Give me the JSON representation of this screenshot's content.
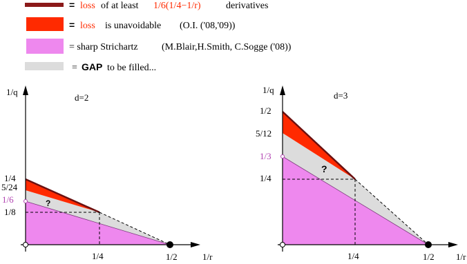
{
  "legend": {
    "row1": {
      "prefix": "=",
      "word": "loss",
      "mid": "of at least",
      "expr": "1/6(1/4−1/r)",
      "suffix": "derivatives"
    },
    "row2": {
      "prefix": "=",
      "word": "loss",
      "text": "is unavoidable",
      "cite": "(O.I. ('08,'09))"
    },
    "row3": {
      "text": "= sharp Strichartz",
      "cite": "(M.Blair,H.Smith, C.Sogge ('08))"
    },
    "row4": {
      "prefix": "=",
      "bold": "GAP",
      "rest": "to be filled..."
    }
  },
  "left_plot": {
    "title": "d=2",
    "y_axis_label": "1/q",
    "x_axis_label": "1/r",
    "y_ticks": [
      "1/4",
      "5/24",
      "1/6",
      "1/8"
    ],
    "x_ticks": [
      "1/4",
      "1/2"
    ],
    "gap_mark": "?"
  },
  "right_plot": {
    "title": "d=3",
    "y_axis_label": "1/q",
    "x_axis_label": "1/r",
    "y_ticks": [
      "1/2",
      "5/12",
      "1/3",
      "1/4"
    ],
    "x_ticks": [
      "1/4",
      "1/2"
    ],
    "gap_mark": "?"
  },
  "colors": {
    "dark_loss_line": "#8b1a1a",
    "loss_red": "#ff2a00",
    "strichartz_pink": "#ee88ee",
    "gap_gray": "#dcdcdc",
    "text_red": "#ff2a00",
    "purple_tick": "#b040b0"
  }
}
